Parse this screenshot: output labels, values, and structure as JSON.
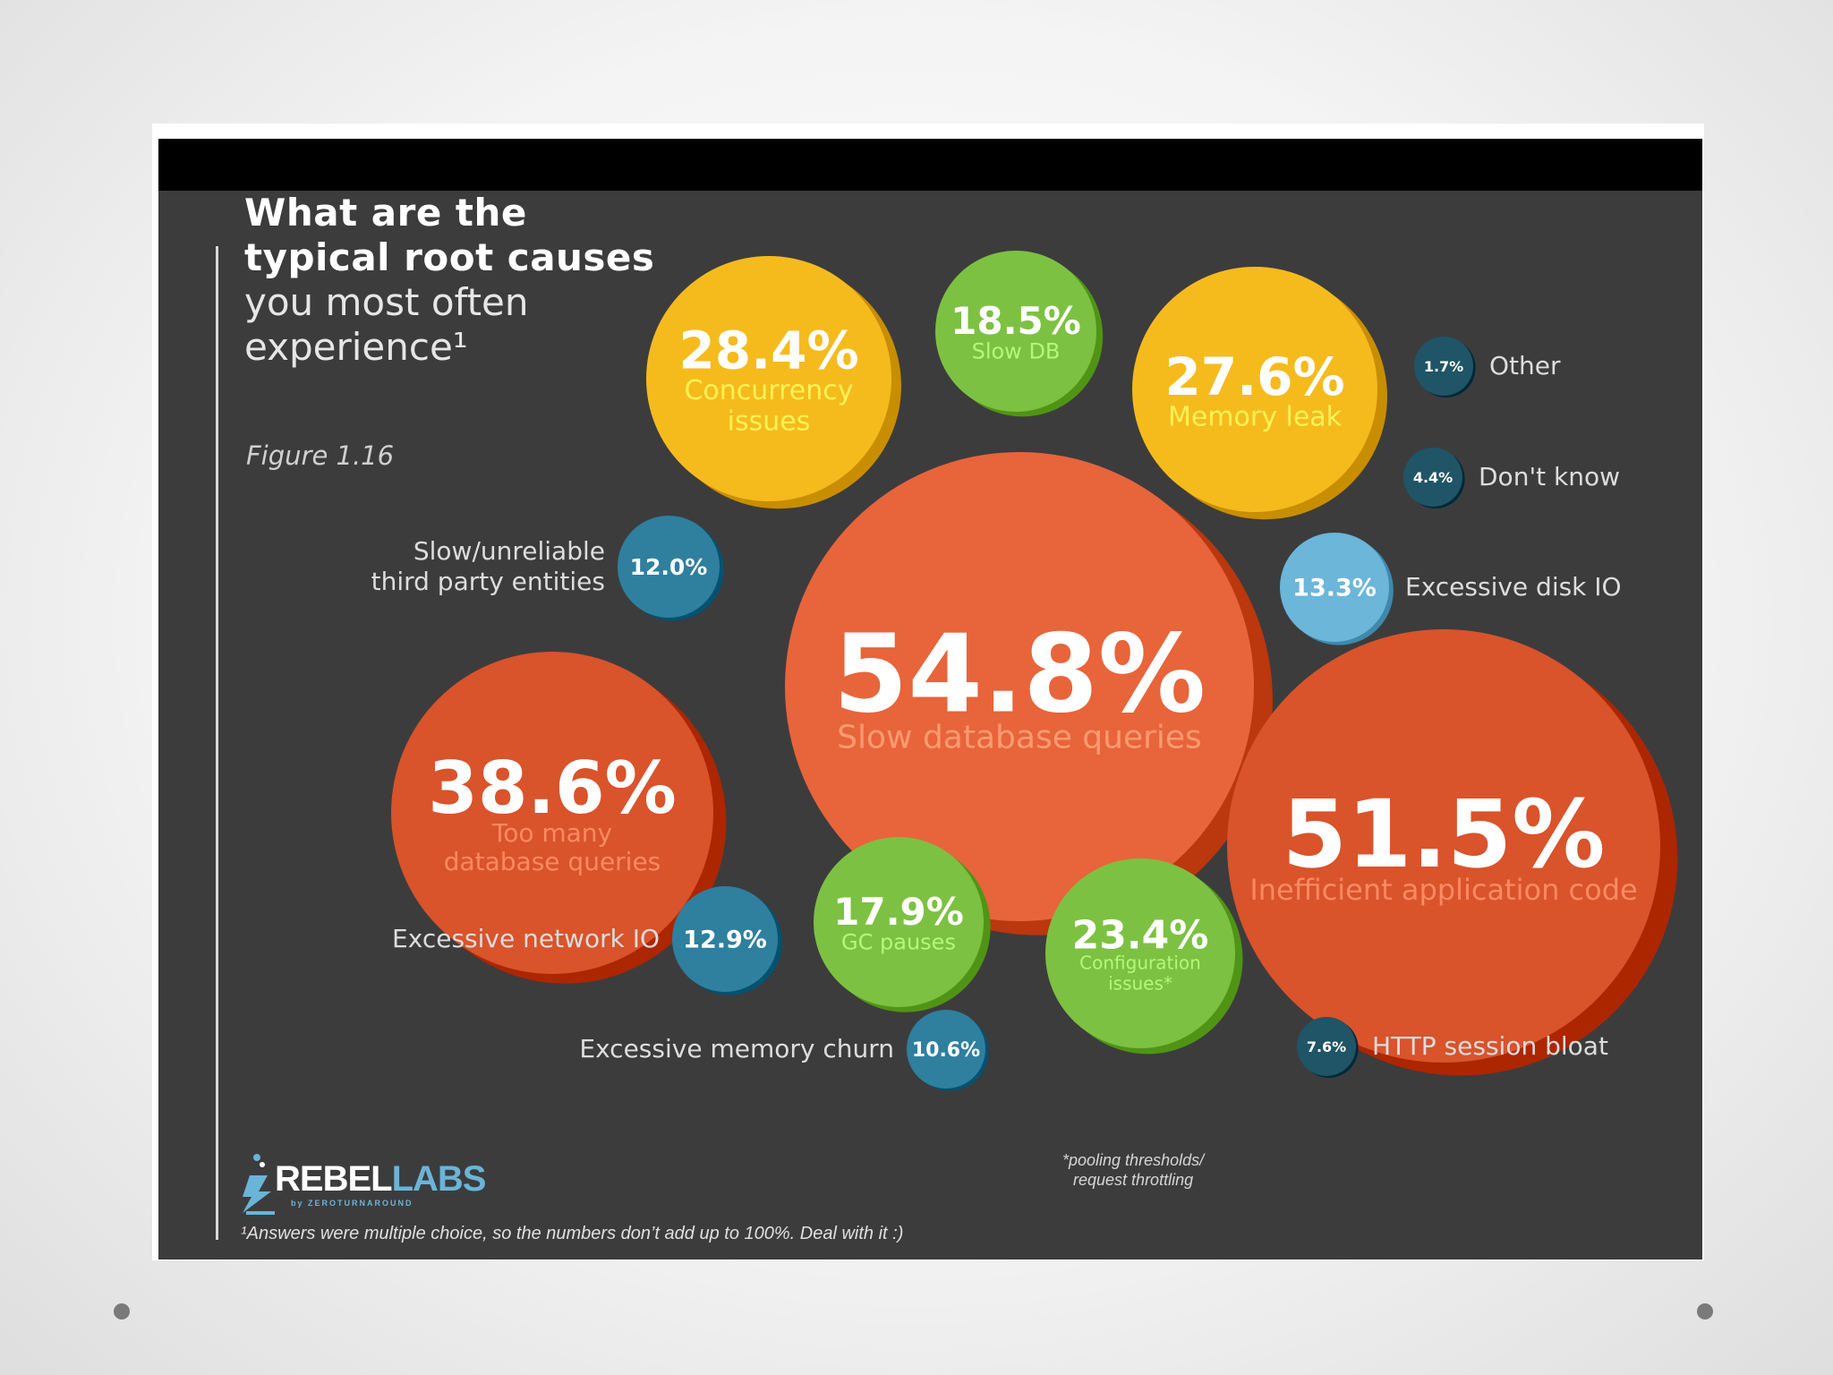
{
  "title": {
    "line1": "What are the",
    "line2": "typical root causes",
    "line3": "you most often",
    "line4": "experience¹"
  },
  "figure_label": "Figure 1.16",
  "footnote": "¹Answers were multiple choice, so the numbers don’t add up to 100%. Deal with it :)",
  "logo": {
    "brand_a": "REBEL",
    "brand_b": "LABS",
    "sub": "by ZEROTURNAROUND"
  },
  "config_note": {
    "line1": "*pooling thresholds/",
    "line2": "request throttling"
  },
  "colors": {
    "background": "#3c3c3d",
    "orange": "#e8643a",
    "red_orange": "#d9532b",
    "yellow": "#f5bb1d",
    "green": "#7dc142",
    "blue": "#2f7f9e",
    "light_blue": "#6bb6d9",
    "dark_teal": "#1f5566"
  },
  "chart_data": {
    "type": "bubble",
    "title": "What are the typical root causes you most often experience¹",
    "unit": "%",
    "series": [
      {
        "category": "Slow database queries",
        "value": 54.8,
        "label": "54.8%",
        "color": "#e8643a"
      },
      {
        "category": "Inefficient application code",
        "value": 51.5,
        "label": "51.5%",
        "color": "#d9532b"
      },
      {
        "category": "Too many database queries",
        "value": 38.6,
        "label": "38.6%",
        "color": "#d9532b"
      },
      {
        "category": "Concurrency issues",
        "value": 28.4,
        "label": "28.4%",
        "color": "#f5bb1d"
      },
      {
        "category": "Memory leak",
        "value": 27.6,
        "label": "27.6%",
        "color": "#f5bb1d"
      },
      {
        "category": "Configuration issues*",
        "value": 23.4,
        "label": "23.4%",
        "color": "#7dc142"
      },
      {
        "category": "Slow DB",
        "value": 18.5,
        "label": "18.5%",
        "color": "#7dc142"
      },
      {
        "category": "GC pauses",
        "value": 17.9,
        "label": "17.9%",
        "color": "#7dc142"
      },
      {
        "category": "Excessive disk IO",
        "value": 13.3,
        "label": "13.3%",
        "color": "#6bb6d9"
      },
      {
        "category": "Excessive network IO",
        "value": 12.9,
        "label": "12.9%",
        "color": "#2f7f9e"
      },
      {
        "category": "Slow/unreliable third party entities",
        "value": 12.0,
        "label": "12.0%",
        "color": "#2f7f9e"
      },
      {
        "category": "Excessive memory churn",
        "value": 10.6,
        "label": "10.6%",
        "color": "#2f7f9e"
      },
      {
        "category": "HTTP session bloat",
        "value": 7.6,
        "label": "7.6%",
        "color": "#1f5566"
      },
      {
        "category": "Don't know",
        "value": 4.4,
        "label": "4.4%",
        "color": "#1f5566"
      },
      {
        "category": "Other",
        "value": 1.7,
        "label": "1.7%",
        "color": "#1f5566"
      }
    ]
  }
}
